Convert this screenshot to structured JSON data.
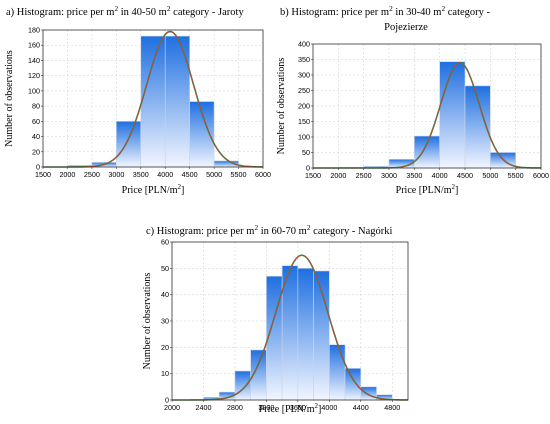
{
  "chart_data": [
    {
      "type": "bar",
      "title": "a) Histogram: price per m² in 40-50 m² category -  Jaroty",
      "xlabel": "Price [PLN/m²]",
      "ylabel": "Number of observations",
      "xlim": [
        1500,
        6000
      ],
      "ylim": [
        0,
        180
      ],
      "xticks": [
        1500,
        2000,
        2500,
        3000,
        3500,
        4000,
        4500,
        5000,
        5500,
        6000
      ],
      "yticks": [
        0,
        20,
        40,
        60,
        80,
        100,
        120,
        140,
        160,
        180
      ],
      "bins": [
        {
          "x0": 2000,
          "x1": 2500,
          "value": 2
        },
        {
          "x0": 2500,
          "x1": 3000,
          "value": 6
        },
        {
          "x0": 3000,
          "x1": 3500,
          "value": 60
        },
        {
          "x0": 3500,
          "x1": 4000,
          "value": 172
        },
        {
          "x0": 4000,
          "x1": 4500,
          "value": 172
        },
        {
          "x0": 4500,
          "x1": 5000,
          "value": 86
        },
        {
          "x0": 5000,
          "x1": 5500,
          "value": 8
        },
        {
          "x0": 5500,
          "x1": 6000,
          "value": 1
        }
      ],
      "normal_curve": {
        "mean": 4100,
        "sd": 480,
        "peak": 178
      },
      "colors": {
        "bar_top": "#1f6fe0",
        "bar_bottom": "#f2f6ff",
        "curve": "#d04040",
        "curve_outer": "#2e8b3a",
        "grid": "#cfcfcf"
      }
    },
    {
      "type": "bar",
      "title": "b) Histogram: price  per m² in 30-40 m² category -",
      "title2": "Pojezierze",
      "xlabel": "Price [PLN/m²]",
      "ylabel": "Number of observations",
      "xlim": [
        1500,
        6000
      ],
      "ylim": [
        0,
        400
      ],
      "xticks": [
        1500,
        2000,
        2500,
        3000,
        3500,
        4000,
        4500,
        5000,
        5500,
        6000
      ],
      "yticks": [
        0,
        50,
        100,
        150,
        200,
        250,
        300,
        350,
        400
      ],
      "bins": [
        {
          "x0": 2000,
          "x1": 2500,
          "value": 2
        },
        {
          "x0": 2500,
          "x1": 3000,
          "value": 5
        },
        {
          "x0": 3000,
          "x1": 3500,
          "value": 28
        },
        {
          "x0": 3500,
          "x1": 4000,
          "value": 103
        },
        {
          "x0": 4000,
          "x1": 4500,
          "value": 343
        },
        {
          "x0": 4500,
          "x1": 5000,
          "value": 265
        },
        {
          "x0": 5000,
          "x1": 5500,
          "value": 50
        },
        {
          "x0": 5500,
          "x1": 6000,
          "value": 2
        }
      ],
      "normal_curve": {
        "mean": 4400,
        "sd": 380,
        "peak": 340
      },
      "colors": {
        "bar_top": "#1f6fe0",
        "bar_bottom": "#f2f6ff",
        "curve": "#d04040",
        "curve_outer": "#2e8b3a",
        "grid": "#cfcfcf"
      }
    },
    {
      "type": "bar",
      "title": "c) Histogram: price per m² in 60-70 m² category - Nagórki",
      "xlabel": "Price [PLN/m²]",
      "ylabel": "Number of observations",
      "xlim": [
        2000,
        5000
      ],
      "ylim": [
        0,
        60
      ],
      "xticks": [
        2000,
        2400,
        2800,
        3200,
        3600,
        4000,
        4400,
        4800
      ],
      "yticks": [
        0,
        10,
        20,
        30,
        40,
        50,
        60
      ],
      "bins": [
        {
          "x0": 2400,
          "x1": 2600,
          "value": 1
        },
        {
          "x0": 2600,
          "x1": 2800,
          "value": 3
        },
        {
          "x0": 2800,
          "x1": 3000,
          "value": 11
        },
        {
          "x0": 3000,
          "x1": 3200,
          "value": 19
        },
        {
          "x0": 3200,
          "x1": 3400,
          "value": 47
        },
        {
          "x0": 3400,
          "x1": 3600,
          "value": 51
        },
        {
          "x0": 3600,
          "x1": 3800,
          "value": 50
        },
        {
          "x0": 3800,
          "x1": 4000,
          "value": 49
        },
        {
          "x0": 4000,
          "x1": 4200,
          "value": 21
        },
        {
          "x0": 4200,
          "x1": 4400,
          "value": 12
        },
        {
          "x0": 4400,
          "x1": 4600,
          "value": 5
        },
        {
          "x0": 4600,
          "x1": 4800,
          "value": 2
        }
      ],
      "normal_curve": {
        "mean": 3650,
        "sd": 330,
        "peak": 55
      },
      "colors": {
        "bar_top": "#1f6fe0",
        "bar_bottom": "#f2f6ff",
        "curve": "#d04040",
        "curve_outer": "#2e8b3a",
        "grid": "#cfcfcf"
      }
    }
  ]
}
